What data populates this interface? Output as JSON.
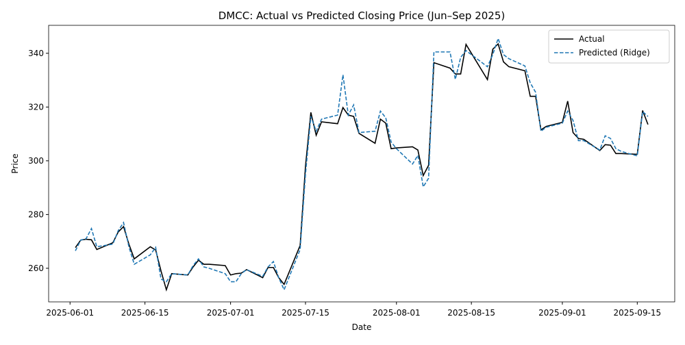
{
  "chart_data": {
    "type": "line",
    "title": "DMCC: Actual vs Predicted Closing Price (Jun–Sep 2025)",
    "xlabel": "Date",
    "ylabel": "Price",
    "x": [
      "2025-06-02",
      "2025-06-03",
      "2025-06-04",
      "2025-06-05",
      "2025-06-06",
      "2025-06-09",
      "2025-06-10",
      "2025-06-11",
      "2025-06-12",
      "2025-06-13",
      "2025-06-16",
      "2025-06-17",
      "2025-06-18",
      "2025-06-19",
      "2025-06-20",
      "2025-06-23",
      "2025-06-24",
      "2025-06-25",
      "2025-06-26",
      "2025-06-27",
      "2025-06-30",
      "2025-07-01",
      "2025-07-02",
      "2025-07-03",
      "2025-07-04",
      "2025-07-07",
      "2025-07-08",
      "2025-07-09",
      "2025-07-10",
      "2025-07-11",
      "2025-07-14",
      "2025-07-15",
      "2025-07-16",
      "2025-07-17",
      "2025-07-18",
      "2025-07-21",
      "2025-07-22",
      "2025-07-23",
      "2025-07-24",
      "2025-07-25",
      "2025-07-28",
      "2025-07-29",
      "2025-07-30",
      "2025-07-31",
      "2025-08-01",
      "2025-08-04",
      "2025-08-05",
      "2025-08-06",
      "2025-08-07",
      "2025-08-08",
      "2025-08-11",
      "2025-08-12",
      "2025-08-13",
      "2025-08-14",
      "2025-08-15",
      "2025-08-18",
      "2025-08-19",
      "2025-08-20",
      "2025-08-21",
      "2025-08-22",
      "2025-08-25",
      "2025-08-26",
      "2025-08-27",
      "2025-08-28",
      "2025-08-29",
      "2025-09-01",
      "2025-09-02",
      "2025-09-03",
      "2025-09-04",
      "2025-09-05",
      "2025-09-08",
      "2025-09-09",
      "2025-09-10",
      "2025-09-11",
      "2025-09-12",
      "2025-09-15",
      "2025-09-16",
      "2025-09-17"
    ],
    "series": [
      {
        "name": "Actual",
        "color": "#000000",
        "dash": false,
        "values": [
          267.7,
          270.5,
          270.8,
          270.6,
          267,
          269.5,
          273.5,
          275.5,
          269,
          263.5,
          268,
          266.8,
          259,
          252,
          258,
          257.5,
          260.5,
          263,
          261.5,
          261.5,
          261,
          257.5,
          258,
          258.2,
          259.5,
          256.5,
          260.3,
          260.3,
          256.5,
          254,
          268.5,
          298,
          318,
          309.5,
          314.5,
          313.8,
          319.8,
          317,
          316.5,
          310.2,
          306.5,
          315.5,
          314,
          304.5,
          304.8,
          305.2,
          304,
          294.5,
          298.3,
          336.5,
          334.5,
          332.3,
          332.3,
          343.3,
          340,
          330.2,
          341.5,
          343.5,
          336.8,
          335,
          333.5,
          324,
          324,
          311.5,
          312.8,
          314.3,
          322.2,
          310.5,
          308.3,
          308,
          303.8,
          306,
          305.8,
          302.7,
          302.7,
          302.4,
          318.7,
          313.5
        ]
      },
      {
        "name": "Predicted (Ridge)",
        "color": "#1f77b4",
        "dash": true,
        "values": [
          266.5,
          270.5,
          271,
          274.8,
          268,
          269,
          274,
          277,
          268,
          261.5,
          265,
          267.8,
          256,
          255,
          258,
          257.5,
          261,
          263.5,
          260.5,
          260,
          258,
          255,
          255,
          258,
          259.5,
          257,
          260.5,
          262.5,
          256.5,
          252,
          267,
          295,
          316.5,
          311,
          315.5,
          317,
          332,
          317,
          320.8,
          310.5,
          311,
          318.5,
          316,
          307,
          304.5,
          298.8,
          302,
          290.3,
          293.5,
          340.5,
          340.5,
          330.3,
          338.5,
          341,
          339.5,
          335,
          339.5,
          345.5,
          339.5,
          338,
          335.3,
          329,
          325.5,
          311,
          312.5,
          314,
          318.5,
          315,
          307.5,
          307.5,
          304,
          309.3,
          308.3,
          304.5,
          303.5,
          301.8,
          318.3,
          316.5
        ]
      }
    ],
    "xlim": [
      "2025-05-28",
      "2025-09-22"
    ],
    "xticks": [
      "2025-06-01",
      "2025-06-15",
      "2025-07-01",
      "2025-07-15",
      "2025-08-01",
      "2025-08-15",
      "2025-09-01",
      "2025-09-15"
    ],
    "ylim": [
      247.5,
      350.4
    ],
    "yticks": [
      260,
      280,
      300,
      320,
      340
    ],
    "legend": "upper right"
  }
}
